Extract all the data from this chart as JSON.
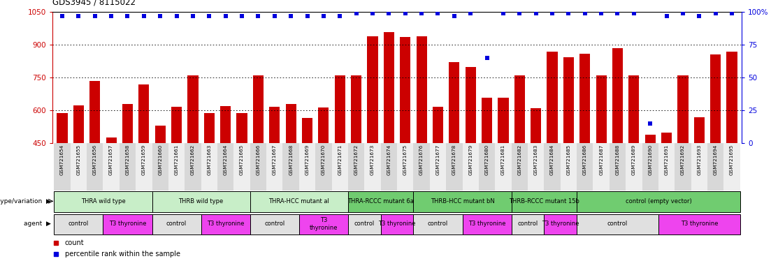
{
  "title": "GDS3945 / 8115022",
  "samples": [
    "GSM721654",
    "GSM721655",
    "GSM721656",
    "GSM721657",
    "GSM721658",
    "GSM721659",
    "GSM721660",
    "GSM721661",
    "GSM721662",
    "GSM721663",
    "GSM721664",
    "GSM721665",
    "GSM721666",
    "GSM721667",
    "GSM721668",
    "GSM721669",
    "GSM721670",
    "GSM721671",
    "GSM721672",
    "GSM721673",
    "GSM721674",
    "GSM721675",
    "GSM721676",
    "GSM721677",
    "GSM721678",
    "GSM721679",
    "GSM721680",
    "GSM721681",
    "GSM721682",
    "GSM721683",
    "GSM721684",
    "GSM721685",
    "GSM721686",
    "GSM721687",
    "GSM721688",
    "GSM721689",
    "GSM721690",
    "GSM721691",
    "GSM721692",
    "GSM721693",
    "GSM721694",
    "GSM721695"
  ],
  "bar_values": [
    590,
    625,
    735,
    478,
    630,
    720,
    530,
    618,
    760,
    590,
    620,
    590,
    760,
    618,
    630,
    565,
    615,
    760,
    760,
    940,
    960,
    935,
    940,
    618,
    820,
    800,
    660,
    660,
    760,
    610,
    870,
    845,
    860,
    760,
    885,
    760,
    490,
    500,
    760,
    570,
    855,
    870
  ],
  "percentile_values": [
    97,
    97,
    97,
    97,
    97,
    97,
    97,
    97,
    97,
    97,
    97,
    97,
    97,
    97,
    97,
    97,
    97,
    97,
    99,
    99,
    99,
    99,
    99,
    99,
    97,
    99,
    65,
    99,
    99,
    99,
    99,
    99,
    99,
    99,
    99,
    99,
    15,
    97,
    99,
    97,
    99,
    99
  ],
  "ylim_left": [
    450,
    1050
  ],
  "ylim_right": [
    0,
    100
  ],
  "yticks_left": [
    450,
    600,
    750,
    900,
    1050
  ],
  "yticks_right": [
    0,
    25,
    50,
    75,
    100
  ],
  "bar_color": "#CC0000",
  "dot_color": "#0000DD",
  "background_color": "#ffffff",
  "genotype_groups": [
    {
      "label": "THRA wild type",
      "start": 0,
      "end": 6,
      "color": "#c8eec8"
    },
    {
      "label": "THRB wild type",
      "start": 6,
      "end": 12,
      "color": "#c8eec8"
    },
    {
      "label": "THRA-HCC mutant al",
      "start": 12,
      "end": 18,
      "color": "#c8eec8"
    },
    {
      "label": "THRA-RCCC mutant 6a",
      "start": 18,
      "end": 22,
      "color": "#70cc70"
    },
    {
      "label": "THRB-HCC mutant bN",
      "start": 22,
      "end": 28,
      "color": "#70cc70"
    },
    {
      "label": "THRB-RCCC mutant 15b",
      "start": 28,
      "end": 32,
      "color": "#70cc70"
    },
    {
      "label": "control (empty vector)",
      "start": 32,
      "end": 42,
      "color": "#70cc70"
    }
  ],
  "agent_groups": [
    {
      "label": "control",
      "start": 0,
      "end": 3,
      "color": "#E0E0E0"
    },
    {
      "label": "T3 thyronine",
      "start": 3,
      "end": 6,
      "color": "#EE44EE"
    },
    {
      "label": "control",
      "start": 6,
      "end": 9,
      "color": "#E0E0E0"
    },
    {
      "label": "T3 thyronine",
      "start": 9,
      "end": 12,
      "color": "#EE44EE"
    },
    {
      "label": "control",
      "start": 12,
      "end": 15,
      "color": "#E0E0E0"
    },
    {
      "label": "T3\nthyronine",
      "start": 15,
      "end": 18,
      "color": "#EE44EE"
    },
    {
      "label": "control",
      "start": 18,
      "end": 20,
      "color": "#E0E0E0"
    },
    {
      "label": "T3 thyronine",
      "start": 20,
      "end": 22,
      "color": "#EE44EE"
    },
    {
      "label": "control",
      "start": 22,
      "end": 25,
      "color": "#E0E0E0"
    },
    {
      "label": "T3 thyronine",
      "start": 25,
      "end": 28,
      "color": "#EE44EE"
    },
    {
      "label": "control",
      "start": 28,
      "end": 30,
      "color": "#E0E0E0"
    },
    {
      "label": "T3 thyronine",
      "start": 30,
      "end": 32,
      "color": "#EE44EE"
    },
    {
      "label": "control",
      "start": 32,
      "end": 37,
      "color": "#E0E0E0"
    },
    {
      "label": "T3 thyronine",
      "start": 37,
      "end": 42,
      "color": "#EE44EE"
    }
  ]
}
